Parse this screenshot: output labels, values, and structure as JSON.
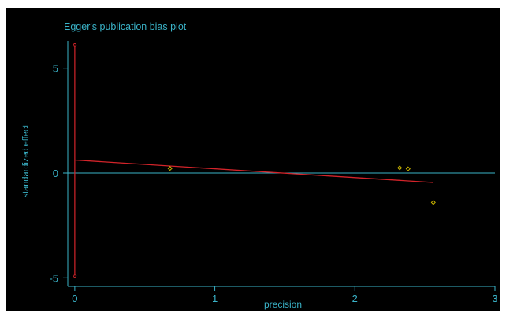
{
  "colors": {
    "background": "#000000",
    "frame": "#ffffff",
    "text": "#3ab3c8",
    "axis": "#3ab3c8",
    "zero_line": "#3ab3c8",
    "regression_line": "#d4242a",
    "ci_bar": "#d4242a",
    "points": "#c8b400"
  },
  "chart_data": {
    "type": "scatter",
    "title": "Egger's publication bias plot",
    "xlabel": "precision",
    "ylabel": "standardized effect",
    "xlim": [
      -0.05,
      3.0
    ],
    "ylim": [
      -5.4,
      6.3
    ],
    "xticks": [
      0,
      1,
      2,
      3
    ],
    "yticks": [
      -5,
      0,
      5
    ],
    "grid": false,
    "zero_line_y": 0,
    "points": [
      {
        "x": 0.68,
        "y": 0.22
      },
      {
        "x": 2.32,
        "y": 0.25
      },
      {
        "x": 2.38,
        "y": 0.2
      },
      {
        "x": 2.56,
        "y": -1.4
      }
    ],
    "regression_line": {
      "x": [
        0.0,
        2.56
      ],
      "y": [
        0.62,
        -0.45
      ]
    },
    "intercept_ci": {
      "x": 0.0,
      "y_low": -4.9,
      "y_high": 6.1
    }
  }
}
